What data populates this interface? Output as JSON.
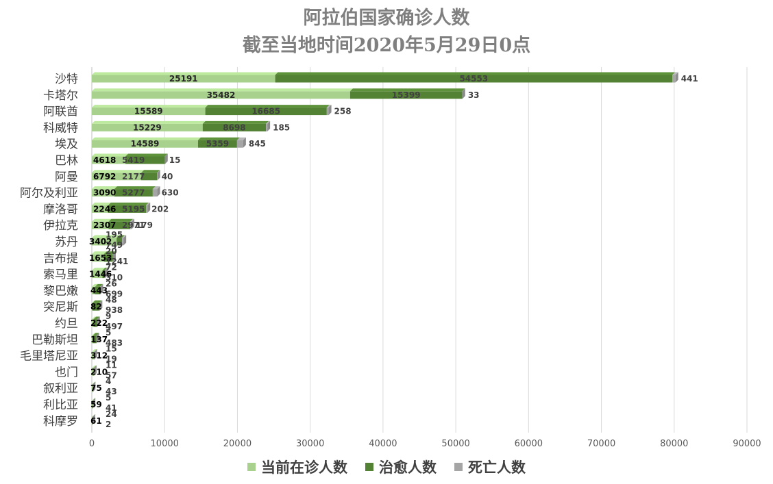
{
  "chart_data": {
    "type": "bar",
    "orientation": "horizontal",
    "stacked": true,
    "title": "阿拉伯国家确诊人数",
    "subtitle": "截至当地时间2020年5月29日0点",
    "categories": [
      "沙特",
      "卡塔尔",
      "阿联酋",
      "科威特",
      "埃及",
      "巴林",
      "阿曼",
      "阿尔及利亚",
      "摩洛哥",
      "伊拉克",
      "苏丹",
      "吉布提",
      "索马里",
      "黎巴嫩",
      "突尼斯",
      "约旦",
      "巴勒斯坦",
      "毛里塔尼亚",
      "也门",
      "叙利亚",
      "利比亚",
      "科摩罗"
    ],
    "series": [
      {
        "name": "当前在诊人数",
        "color": "#a9d18e",
        "values": [
          25191,
          35482,
          15589,
          15229,
          14589,
          4618,
          6792,
          3090,
          2246,
          2307,
          3402,
          1653,
          1446,
          443,
          82,
          222,
          137,
          312,
          210,
          75,
          59,
          61
        ]
      },
      {
        "name": "治愈人数",
        "color": "#548235",
        "values": [
          54553,
          15399,
          16685,
          8698,
          5359,
          5419,
          2177,
          5277,
          5195,
          2971,
          749,
          1241,
          310,
          699,
          938,
          497,
          483,
          19,
          57,
          43,
          41,
          2
        ]
      },
      {
        "name": "死亡人数",
        "color": "#a5a5a5",
        "values": [
          441,
          33,
          258,
          185,
          845,
          15,
          40,
          630,
          202,
          179,
          195,
          20,
          72,
          26,
          48,
          9,
          5,
          15,
          11,
          4,
          5,
          24
        ]
      }
    ],
    "xlim": [
      0,
      90000
    ],
    "xticks": [
      0,
      10000,
      20000,
      30000,
      40000,
      50000,
      60000,
      70000,
      80000,
      90000
    ],
    "grid": true,
    "legend_position": "bottom"
  }
}
